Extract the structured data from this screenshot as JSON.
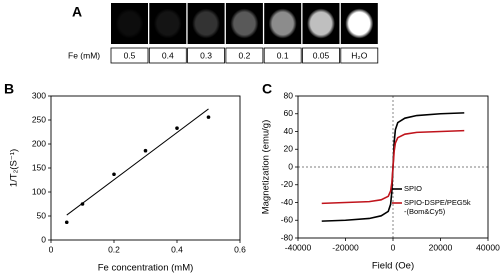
{
  "panel_labels": [
    "A",
    "B",
    "C"
  ],
  "mri_row": {
    "label": "Fe (mM)",
    "cells": [
      0.5,
      0.4,
      0.3,
      0.2,
      0.1,
      0.05,
      "H₂O"
    ]
  },
  "chart_data": [
    {
      "type": "scatter",
      "x_label": "Fe concentration (mM)",
      "y_label": "1/T₂(S⁻¹)",
      "x": [
        0.05,
        0.1,
        0.2,
        0.3,
        0.4,
        0.5
      ],
      "values": [
        37,
        75,
        137,
        186,
        233,
        256
      ],
      "color": "#000000",
      "fit_line": {
        "x": [
          0.05,
          0.5
        ],
        "values": [
          52,
          273
        ]
      },
      "xlim": [
        0,
        0.6
      ],
      "xticks": [
        0,
        0.2,
        0.4,
        0.6
      ],
      "ylim": [
        0,
        300
      ],
      "yticks": [
        0,
        50,
        100,
        150,
        200,
        250,
        300
      ]
    },
    {
      "type": "line",
      "x_label": "Field (Oe)",
      "y_label": "Magnetization (emu/g)",
      "x": [
        -30000,
        -20000,
        -10000,
        -5000,
        -2000,
        -1000,
        -500,
        0,
        500,
        1000,
        2000,
        5000,
        10000,
        20000,
        30000
      ],
      "series": [
        {
          "name": "SPIO",
          "color": "#000000",
          "values": [
            -61,
            -60,
            -58,
            -55,
            -50,
            -42,
            -28,
            0,
            28,
            42,
            50,
            55,
            58,
            60,
            61
          ]
        },
        {
          "name": "SPIO-DSPE/PEG5k-(Bom&Cy5)",
          "color": "#c0141c",
          "values": [
            -41,
            -40,
            -39,
            -37,
            -33,
            -27,
            -18,
            0,
            18,
            27,
            33,
            37,
            39,
            40,
            41
          ]
        }
      ],
      "xlim": [
        -40000,
        40000
      ],
      "xticks": [
        -40000,
        -20000,
        0,
        20000,
        40000
      ],
      "ylim": [
        -80,
        80
      ],
      "yticks": [
        -80,
        -60,
        -40,
        -20,
        0,
        20,
        40,
        60,
        80
      ],
      "legend": "lower-right"
    }
  ]
}
